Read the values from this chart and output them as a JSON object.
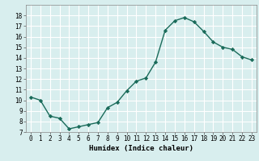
{
  "xlabel": "Humidex (Indice chaleur)",
  "x": [
    0,
    1,
    2,
    3,
    4,
    5,
    6,
    7,
    8,
    9,
    10,
    11,
    12,
    13,
    14,
    15,
    16,
    17,
    18,
    19,
    20,
    21,
    22,
    23
  ],
  "y": [
    10.3,
    10.0,
    8.5,
    8.3,
    7.3,
    7.5,
    7.7,
    7.9,
    9.3,
    9.8,
    10.9,
    11.8,
    12.1,
    13.6,
    16.6,
    17.5,
    17.8,
    17.4,
    16.5,
    15.5,
    15.0,
    14.8,
    14.1,
    13.8
  ],
  "line_color": "#1a6b5a",
  "marker": "D",
  "marker_size": 2.2,
  "bg_color": "#d8eeee",
  "grid_color": "#ffffff",
  "ylim": [
    7,
    19
  ],
  "xlim": [
    -0.5,
    23.5
  ],
  "yticks": [
    7,
    8,
    9,
    10,
    11,
    12,
    13,
    14,
    15,
    16,
    17,
    18
  ],
  "xticks": [
    0,
    1,
    2,
    3,
    4,
    5,
    6,
    7,
    8,
    9,
    10,
    11,
    12,
    13,
    14,
    15,
    16,
    17,
    18,
    19,
    20,
    21,
    22,
    23
  ],
  "tick_fontsize": 5.5,
  "xlabel_fontsize": 6.5,
  "line_width": 1.0
}
